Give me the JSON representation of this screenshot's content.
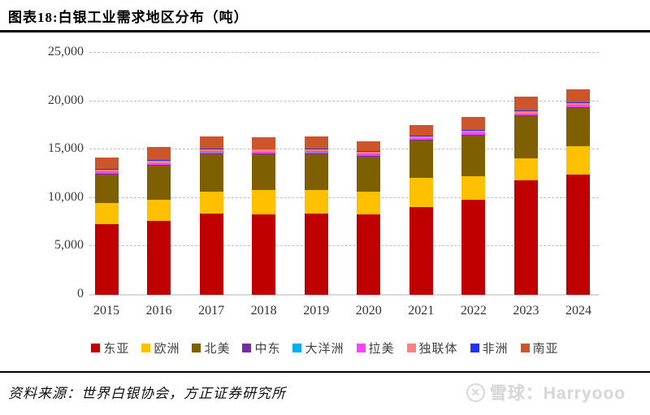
{
  "header": {
    "title": "图表18:白银工业需求地区分布（吨）"
  },
  "chart_data": {
    "type": "bar",
    "stacked": true,
    "title": "白银工业需求地区分布（吨）",
    "unit": "吨",
    "categories": [
      "2015",
      "2016",
      "2017",
      "2018",
      "2019",
      "2020",
      "2021",
      "2022",
      "2023",
      "2024"
    ],
    "series": [
      {
        "name": "东亚",
        "color": "#c00000",
        "values": [
          7300,
          7600,
          8400,
          8300,
          8350,
          8300,
          9050,
          9800,
          11850,
          12400
        ]
      },
      {
        "name": "欧洲",
        "color": "#ffc000",
        "values": [
          2200,
          2250,
          2250,
          2500,
          2450,
          2350,
          3050,
          2450,
          2250,
          2950
        ]
      },
      {
        "name": "北美",
        "color": "#7f6000",
        "values": [
          2950,
          3500,
          3900,
          3700,
          3750,
          3650,
          3850,
          4200,
          4350,
          3950
        ]
      },
      {
        "name": "中东",
        "color": "#7030a0",
        "values": [
          80,
          80,
          80,
          80,
          80,
          80,
          70,
          90,
          90,
          90
        ]
      },
      {
        "name": "大洋洲",
        "color": "#00b0f0",
        "values": [
          20,
          20,
          20,
          20,
          20,
          20,
          20,
          20,
          20,
          20
        ]
      },
      {
        "name": "拉美",
        "color": "#ff40ff",
        "values": [
          180,
          180,
          180,
          180,
          180,
          180,
          160,
          190,
          190,
          190
        ]
      },
      {
        "name": "独联体",
        "color": "#ff8080",
        "values": [
          200,
          200,
          200,
          200,
          200,
          200,
          180,
          220,
          220,
          220
        ]
      },
      {
        "name": "非洲",
        "color": "#1f36ee",
        "values": [
          70,
          70,
          70,
          70,
          70,
          70,
          70,
          80,
          80,
          80
        ]
      },
      {
        "name": "南亚",
        "color": "#cc5629",
        "values": [
          1200,
          1350,
          1300,
          1250,
          1300,
          1000,
          1100,
          1300,
          1400,
          1350
        ]
      }
    ],
    "totals": [
      14200,
      15250,
      16400,
      16300,
      16400,
      15850,
      17550,
      18350,
      20450,
      21250
    ],
    "ylim": [
      0,
      25000
    ],
    "ytick_interval": 5000,
    "ytick_labels": [
      "0",
      "5,000",
      "10,000",
      "15,000",
      "20,000",
      "25,000"
    ],
    "grid": "horizontal-dashed",
    "legend_position": "bottom"
  },
  "footer": {
    "source": "资料来源：世界白银协会，方正证券研究所"
  },
  "watermark": {
    "logo_glyph": "✕",
    "text": "雪球：Harryooo"
  }
}
